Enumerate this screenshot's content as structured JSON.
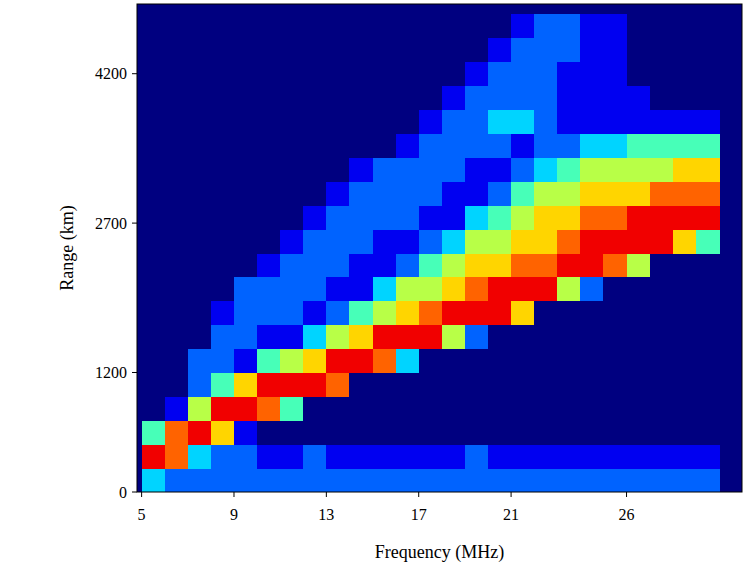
{
  "chart_data": {
    "type": "heatmap",
    "x_label": "Frequency (MHz)",
    "y_label": "Range (km)",
    "xlim": [
      4.8,
      31
    ],
    "ylim": [
      0,
      4900
    ],
    "xticks": [
      5,
      9,
      13,
      17,
      21,
      26
    ],
    "yticks": [
      0,
      1200,
      2700,
      4200
    ],
    "xbins": [
      5,
      6,
      7,
      8,
      9,
      10,
      11,
      12,
      13,
      14,
      15,
      16,
      17,
      18,
      19,
      20,
      21,
      22,
      23,
      24,
      25,
      26,
      27,
      28,
      29,
      30
    ],
    "ybins": [
      0,
      240,
      480,
      720,
      960,
      1200,
      1440,
      1680,
      1920,
      2160,
      2400,
      2640,
      2880,
      3120,
      3360,
      3600,
      3840,
      4080,
      4320,
      4560,
      4800
    ],
    "zlim": [
      0,
      9
    ],
    "cells": [
      [
        3,
        2,
        2,
        2,
        2,
        2,
        2,
        2,
        2,
        2,
        2,
        2,
        2,
        2,
        2,
        2,
        2,
        2,
        2,
        2,
        2,
        2,
        2,
        2,
        2
      ],
      [
        8,
        7,
        3,
        2,
        2,
        1,
        1,
        2,
        1,
        1,
        1,
        1,
        1,
        1,
        2,
        1,
        1,
        1,
        1,
        1,
        1,
        1,
        1,
        1,
        1
      ],
      [
        4,
        7,
        8,
        6,
        1,
        0,
        0,
        0,
        0,
        0,
        0,
        0,
        0,
        0,
        0,
        0,
        0,
        0,
        0,
        0,
        0,
        0,
        0,
        0,
        0
      ],
      [
        0,
        1,
        5,
        8,
        8,
        7,
        4,
        0,
        0,
        0,
        0,
        0,
        0,
        0,
        0,
        0,
        0,
        0,
        0,
        0,
        0,
        0,
        0,
        0,
        0
      ],
      [
        0,
        0,
        2,
        4,
        6,
        8,
        8,
        8,
        7,
        0,
        0,
        0,
        0,
        0,
        0,
        0,
        0,
        0,
        0,
        0,
        0,
        0,
        0,
        0,
        0
      ],
      [
        0,
        0,
        2,
        2,
        1,
        4,
        5,
        6,
        8,
        8,
        7,
        3,
        0,
        0,
        0,
        0,
        0,
        0,
        0,
        0,
        0,
        0,
        0,
        0,
        0
      ],
      [
        0,
        0,
        0,
        2,
        2,
        1,
        1,
        3,
        5,
        6,
        8,
        8,
        8,
        5,
        2,
        0,
        0,
        0,
        0,
        0,
        0,
        0,
        0,
        0,
        0
      ],
      [
        0,
        0,
        0,
        1,
        2,
        2,
        2,
        1,
        2,
        4,
        5,
        6,
        7,
        8,
        8,
        8,
        6,
        0,
        0,
        0,
        0,
        0,
        0,
        0,
        0
      ],
      [
        0,
        0,
        0,
        0,
        2,
        2,
        2,
        2,
        1,
        1,
        3,
        5,
        5,
        6,
        7,
        8,
        8,
        8,
        5,
        2,
        0,
        0,
        0,
        0,
        0
      ],
      [
        0,
        0,
        0,
        0,
        0,
        1,
        2,
        2,
        2,
        1,
        1,
        2,
        4,
        5,
        6,
        6,
        7,
        7,
        8,
        8,
        7,
        5,
        0,
        0,
        0
      ],
      [
        0,
        0,
        0,
        0,
        0,
        0,
        1,
        2,
        2,
        2,
        1,
        1,
        2,
        3,
        5,
        5,
        6,
        6,
        7,
        8,
        8,
        8,
        8,
        6,
        4
      ],
      [
        0,
        0,
        0,
        0,
        0,
        0,
        0,
        1,
        2,
        2,
        2,
        2,
        1,
        1,
        3,
        4,
        5,
        6,
        6,
        7,
        7,
        8,
        8,
        8,
        8
      ],
      [
        0,
        0,
        0,
        0,
        0,
        0,
        0,
        0,
        1,
        2,
        2,
        2,
        2,
        1,
        1,
        2,
        4,
        5,
        5,
        6,
        6,
        6,
        7,
        7,
        7
      ],
      [
        0,
        0,
        0,
        0,
        0,
        0,
        0,
        0,
        0,
        1,
        2,
        2,
        2,
        2,
        1,
        1,
        2,
        3,
        4,
        5,
        5,
        5,
        5,
        6,
        6
      ],
      [
        0,
        0,
        0,
        0,
        0,
        0,
        0,
        0,
        0,
        0,
        0,
        1,
        2,
        2,
        2,
        2,
        1,
        2,
        2,
        3,
        3,
        4,
        4,
        4,
        4
      ],
      [
        0,
        0,
        0,
        0,
        0,
        0,
        0,
        0,
        0,
        0,
        0,
        0,
        1,
        2,
        2,
        3,
        3,
        2,
        1,
        1,
        1,
        1,
        1,
        1,
        1
      ],
      [
        0,
        0,
        0,
        0,
        0,
        0,
        0,
        0,
        0,
        0,
        0,
        0,
        0,
        1,
        2,
        2,
        2,
        2,
        1,
        1,
        1,
        1,
        0,
        0,
        0
      ],
      [
        0,
        0,
        0,
        0,
        0,
        0,
        0,
        0,
        0,
        0,
        0,
        0,
        0,
        0,
        1,
        2,
        2,
        2,
        1,
        1,
        1,
        0,
        0,
        0,
        0
      ],
      [
        0,
        0,
        0,
        0,
        0,
        0,
        0,
        0,
        0,
        0,
        0,
        0,
        0,
        0,
        0,
        1,
        2,
        2,
        2,
        1,
        1,
        0,
        0,
        0,
        0
      ],
      [
        0,
        0,
        0,
        0,
        0,
        0,
        0,
        0,
        0,
        0,
        0,
        0,
        0,
        0,
        0,
        0,
        1,
        2,
        2,
        1,
        1,
        0,
        0,
        0,
        0
      ]
    ]
  }
}
